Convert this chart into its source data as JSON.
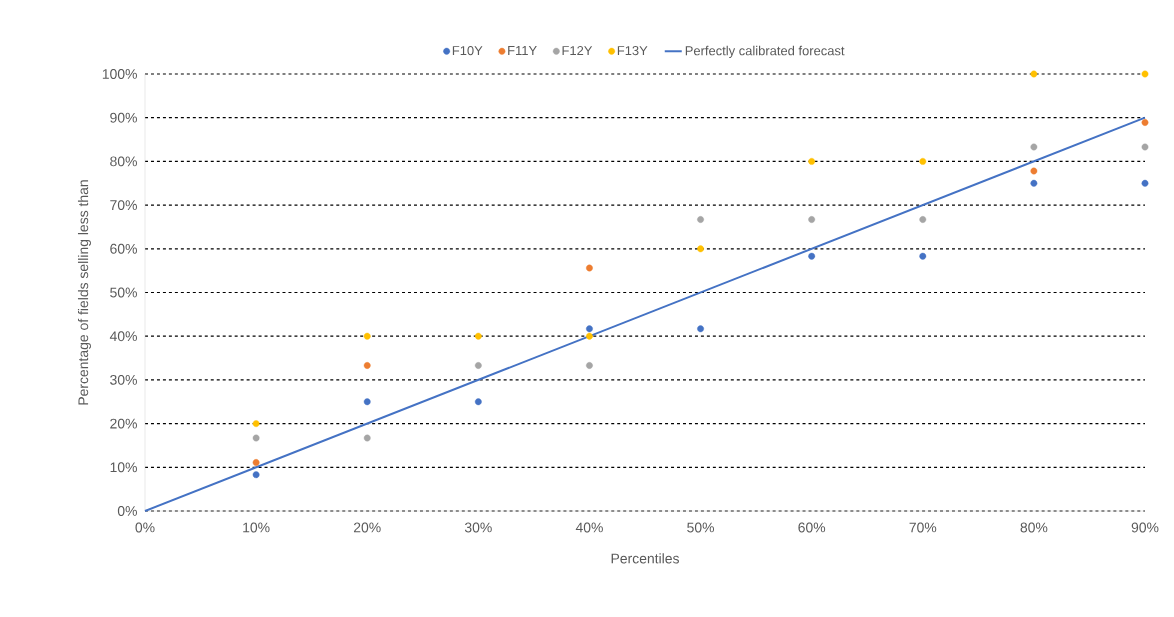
{
  "chart_data": {
    "type": "scatter",
    "xlabel": "Percentiles",
    "ylabel": "Percentage of fields selling less than",
    "x": [
      10,
      20,
      30,
      40,
      50,
      60,
      70,
      80,
      90
    ],
    "series": [
      {
        "name": "F10Y",
        "color": "#4472c4",
        "marker": "circle",
        "values": [
          8.3,
          25,
          25,
          41.7,
          41.7,
          58.3,
          58.3,
          75,
          75
        ]
      },
      {
        "name": "F11Y",
        "color": "#ed7d31",
        "marker": "circle",
        "values": [
          11.1,
          33.3,
          null,
          55.6,
          null,
          null,
          null,
          77.8,
          88.9
        ]
      },
      {
        "name": "F12Y",
        "color": "#a5a5a5",
        "marker": "circle",
        "values": [
          16.7,
          16.7,
          33.3,
          33.3,
          66.7,
          66.7,
          66.7,
          83.3,
          83.3
        ]
      },
      {
        "name": "F13Y",
        "color": "#ffc000",
        "marker": "circle",
        "values": [
          20,
          40,
          40,
          40,
          60,
          80,
          80,
          100,
          100
        ]
      },
      {
        "name": "Perfectly calibrated forecast",
        "type": "line",
        "marker": "none",
        "line_style": "solid",
        "color": "#4472c4",
        "x": [
          0,
          90
        ],
        "values": [
          0,
          90
        ]
      }
    ],
    "xlim": [
      0,
      90
    ],
    "ylim": [
      0,
      100
    ],
    "xticks": [
      {
        "value": 0,
        "label": "0%"
      },
      {
        "value": 10,
        "label": "10%"
      },
      {
        "value": 20,
        "label": "20%"
      },
      {
        "value": 30,
        "label": "30%"
      },
      {
        "value": 40,
        "label": "40%"
      },
      {
        "value": 50,
        "label": "50%"
      },
      {
        "value": 60,
        "label": "60%"
      },
      {
        "value": 70,
        "label": "70%"
      },
      {
        "value": 80,
        "label": "80%"
      },
      {
        "value": 90,
        "label": "90%"
      }
    ],
    "yticks": [
      {
        "value": 0,
        "label": "0%"
      },
      {
        "value": 10,
        "label": "10%"
      },
      {
        "value": 20,
        "label": "20%"
      },
      {
        "value": 30,
        "label": "30%"
      },
      {
        "value": 40,
        "label": "40%"
      },
      {
        "value": 50,
        "label": "50%"
      },
      {
        "value": 60,
        "label": "60%"
      },
      {
        "value": 70,
        "label": "70%"
      },
      {
        "value": 80,
        "label": "80%"
      },
      {
        "value": 90,
        "label": "90%"
      },
      {
        "value": 100,
        "label": "100%"
      }
    ],
    "grid": "y",
    "legend": "top"
  }
}
